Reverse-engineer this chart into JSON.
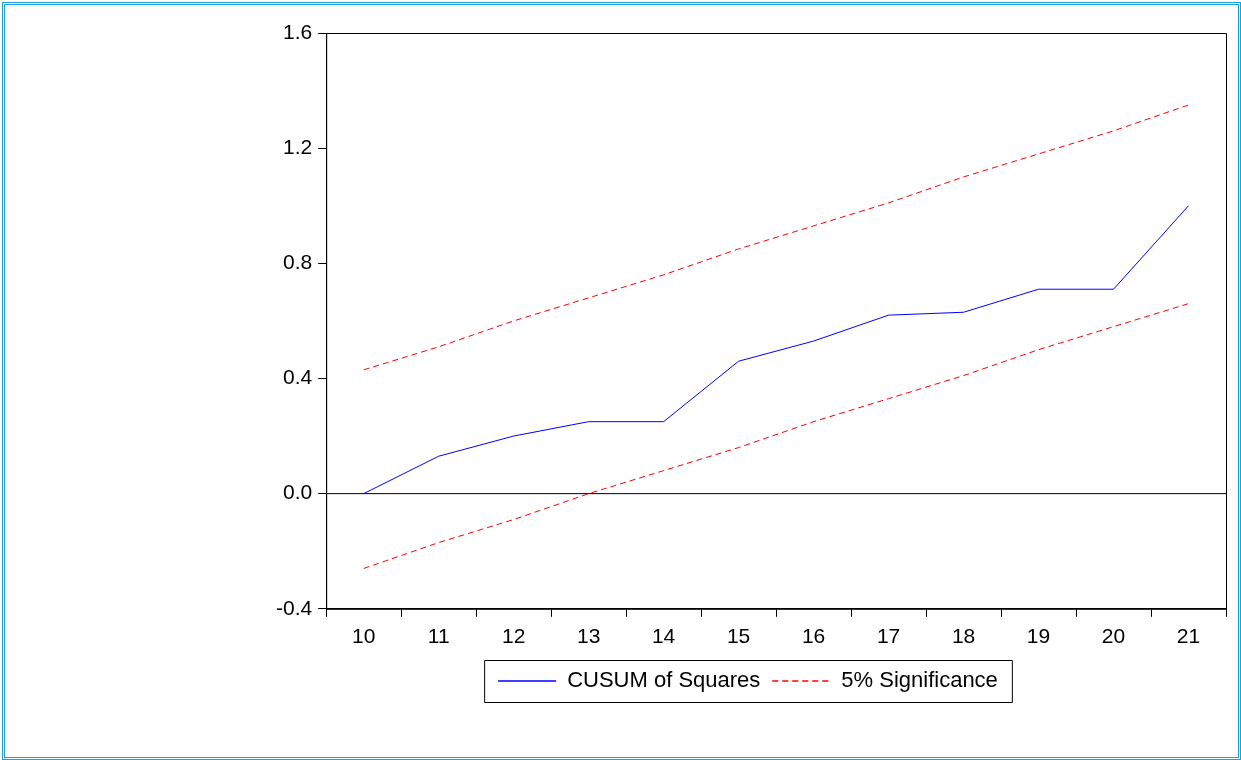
{
  "chart_data": {
    "type": "line",
    "categories": [
      "10",
      "11",
      "12",
      "13",
      "14",
      "15",
      "16",
      "17",
      "18",
      "19",
      "20",
      "21"
    ],
    "series": [
      {
        "name": "CUSUM of Squares",
        "color": "#0000ff",
        "line_style": "solid",
        "values": [
          0.0,
          0.13,
          0.2,
          0.25,
          0.25,
          0.46,
          0.53,
          0.62,
          0.63,
          0.71,
          0.71,
          1.0
        ]
      },
      {
        "name": "5% Significance",
        "color": "#ff0000",
        "line_style": "dashed",
        "values": [
          0.43,
          0.51,
          0.6,
          0.68,
          0.76,
          0.85,
          0.93,
          1.01,
          1.1,
          1.18,
          1.26,
          1.35
        ]
      },
      {
        "color": "#ff0000",
        "line_style": "dashed",
        "values": [
          -0.26,
          -0.17,
          -0.09,
          0.0,
          0.08,
          0.16,
          0.25,
          0.33,
          0.41,
          0.5,
          0.58,
          0.66
        ]
      }
    ],
    "ylim": [
      -0.4,
      1.6
    ],
    "yticks": [
      {
        "value": -0.4,
        "label": "-0.4"
      },
      {
        "value": 0,
        "label": "0.0"
      },
      {
        "value": 0.4,
        "label": "0.4"
      },
      {
        "value": 0.8,
        "label": "0.8"
      },
      {
        "value": 1.2,
        "label": "1.2"
      },
      {
        "value": 1.6,
        "label": "1.6"
      }
    ],
    "ref_lines": [
      {
        "axis": "y",
        "value": 0,
        "color": "#000000"
      }
    ],
    "grid": false,
    "legend": "bottom",
    "marker": "none"
  }
}
